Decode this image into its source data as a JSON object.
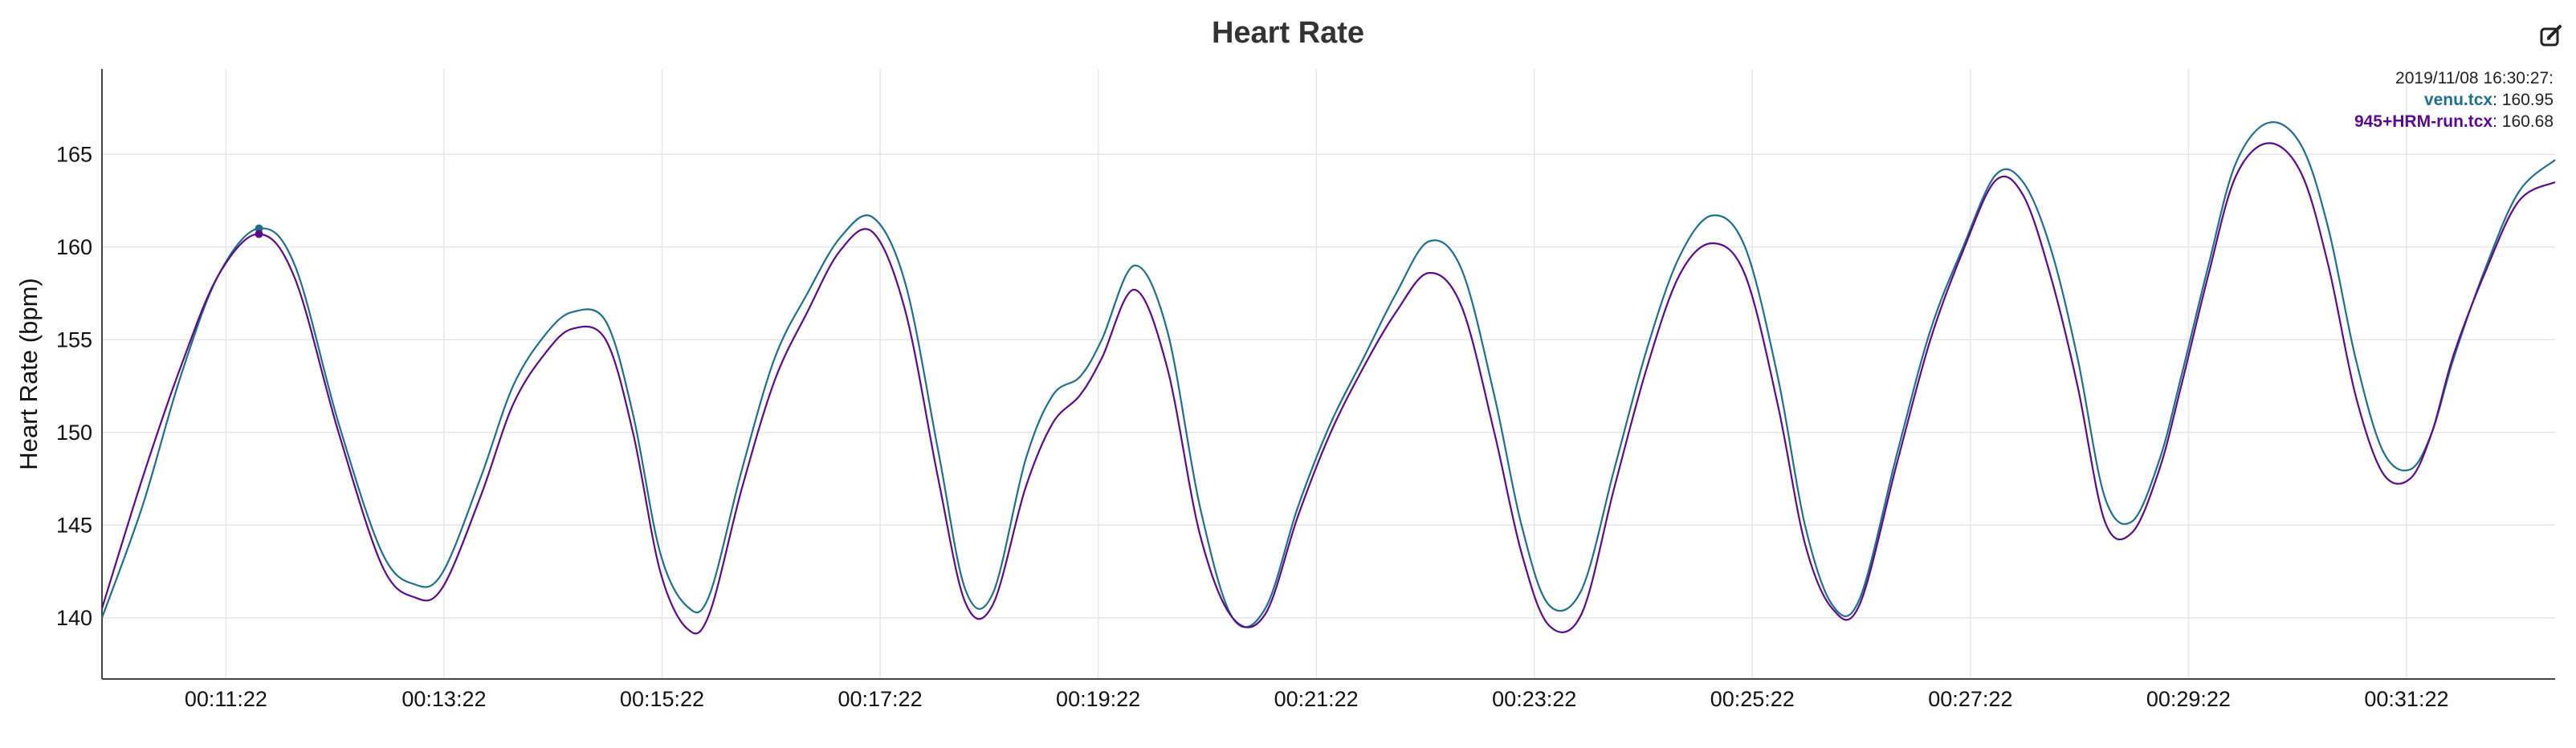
{
  "title": "Heart Rate",
  "edit_icon": "edit-pencil-square-icon",
  "legend": {
    "timestamp": "2019/11/08 16:30:27:",
    "items": [
      {
        "name": "venu.tcx",
        "value": "160.95",
        "color": "#1f6f8b"
      },
      {
        "name": "945+HRM-run.tcx",
        "value": "160.68",
        "color": "#5b0a8a"
      }
    ]
  },
  "chart_data": {
    "type": "line",
    "title": "Heart Rate",
    "xlabel": "",
    "ylabel": "Heart Rate (bpm)",
    "x_unit": "minutes",
    "xlim": [
      10.23,
      32.73
    ],
    "ylim": [
      136.7,
      169.6
    ],
    "x_ticks": [
      11.367,
      13.367,
      15.367,
      17.367,
      19.367,
      21.367,
      23.367,
      25.367,
      27.367,
      29.367,
      31.367
    ],
    "x_tick_labels": [
      "00:11:22",
      "00:13:22",
      "00:15:22",
      "00:17:22",
      "00:19:22",
      "00:21:22",
      "00:23:22",
      "00:25:22",
      "00:27:22",
      "00:29:22",
      "00:31:22"
    ],
    "y_ticks": [
      140,
      145,
      150,
      155,
      160,
      165
    ],
    "grid": true,
    "legend_position": "top-right",
    "highlight_x": 11.67,
    "series": [
      {
        "name": "venu.tcx",
        "color": "#1f6f8b",
        "x": [
          10.23,
          10.6,
          10.95,
          11.3,
          11.67,
          12.0,
          12.4,
          12.8,
          13.1,
          13.35,
          13.7,
          14.0,
          14.3,
          14.55,
          14.85,
          15.1,
          15.35,
          15.6,
          15.8,
          16.1,
          16.4,
          16.7,
          17.0,
          17.3,
          17.6,
          17.9,
          18.15,
          18.4,
          18.7,
          18.95,
          19.2,
          19.4,
          19.7,
          20.0,
          20.3,
          20.6,
          20.9,
          21.2,
          21.5,
          21.8,
          22.1,
          22.4,
          22.7,
          23.0,
          23.25,
          23.5,
          23.8,
          24.1,
          24.4,
          24.7,
          25.0,
          25.3,
          25.6,
          25.85,
          26.1,
          26.35,
          26.7,
          27.0,
          27.3,
          27.6,
          27.85,
          28.1,
          28.35,
          28.6,
          28.85,
          29.1,
          29.3,
          29.55,
          29.8,
          30.1,
          30.4,
          30.65,
          30.9,
          31.15,
          31.4,
          31.6,
          31.8,
          32.1,
          32.4,
          32.73
        ],
        "y": [
          140.0,
          146.0,
          153.0,
          158.5,
          161.0,
          159.0,
          150.5,
          143.5,
          141.8,
          142.4,
          147.5,
          152.5,
          155.3,
          156.5,
          156.0,
          151.0,
          143.5,
          140.6,
          141.2,
          148.0,
          154.0,
          157.5,
          160.5,
          161.6,
          158.0,
          149.0,
          141.5,
          141.3,
          148.5,
          152.0,
          153.0,
          155.0,
          159.0,
          155.5,
          146.0,
          140.0,
          140.5,
          146.0,
          150.5,
          154.0,
          157.5,
          160.3,
          158.8,
          152.0,
          145.0,
          140.7,
          141.5,
          148.0,
          154.5,
          159.5,
          161.7,
          160.0,
          153.0,
          145.0,
          140.7,
          141.0,
          149.0,
          155.5,
          160.0,
          163.9,
          163.5,
          160.0,
          154.0,
          146.5,
          145.2,
          148.5,
          153.0,
          159.0,
          164.5,
          166.7,
          165.5,
          161.0,
          154.0,
          149.0,
          148.0,
          150.0,
          154.0,
          159.0,
          163.0,
          164.7
        ]
      },
      {
        "name": "945+HRM-run.tcx",
        "color": "#5b0a8a",
        "x": [
          10.23,
          10.6,
          10.95,
          11.3,
          11.67,
          12.0,
          12.4,
          12.8,
          13.1,
          13.35,
          13.7,
          14.0,
          14.3,
          14.55,
          14.85,
          15.1,
          15.35,
          15.6,
          15.8,
          16.1,
          16.4,
          16.7,
          17.0,
          17.3,
          17.6,
          17.9,
          18.15,
          18.4,
          18.7,
          18.95,
          19.2,
          19.4,
          19.7,
          20.0,
          20.3,
          20.6,
          20.9,
          21.2,
          21.5,
          21.8,
          22.1,
          22.4,
          22.7,
          23.0,
          23.25,
          23.5,
          23.8,
          24.1,
          24.4,
          24.7,
          25.0,
          25.3,
          25.6,
          25.85,
          26.1,
          26.35,
          26.7,
          27.0,
          27.3,
          27.6,
          27.85,
          28.1,
          28.35,
          28.6,
          28.85,
          29.1,
          29.3,
          29.55,
          29.8,
          30.1,
          30.4,
          30.65,
          30.9,
          31.15,
          31.4,
          31.6,
          31.8,
          32.1,
          32.4,
          32.73
        ],
        "y": [
          140.5,
          147.5,
          153.5,
          158.5,
          160.7,
          158.3,
          150.0,
          142.8,
          141.1,
          141.6,
          146.5,
          151.5,
          154.3,
          155.6,
          155.0,
          150.0,
          142.5,
          139.4,
          140.2,
          147.0,
          152.8,
          156.5,
          159.8,
          160.8,
          156.5,
          147.5,
          140.8,
          140.7,
          147.0,
          150.5,
          152.0,
          154.0,
          157.7,
          153.5,
          144.5,
          140.0,
          140.2,
          145.5,
          150.0,
          153.5,
          156.5,
          158.6,
          156.8,
          150.0,
          143.5,
          139.6,
          140.2,
          147.0,
          153.5,
          158.5,
          160.2,
          158.5,
          151.5,
          144.0,
          140.5,
          140.7,
          148.5,
          155.0,
          159.8,
          163.6,
          162.8,
          158.5,
          152.5,
          145.2,
          144.6,
          148.0,
          152.5,
          158.5,
          163.8,
          165.6,
          164.0,
          159.0,
          152.0,
          147.8,
          147.5,
          150.0,
          154.2,
          158.8,
          162.5,
          163.5
        ]
      }
    ]
  }
}
